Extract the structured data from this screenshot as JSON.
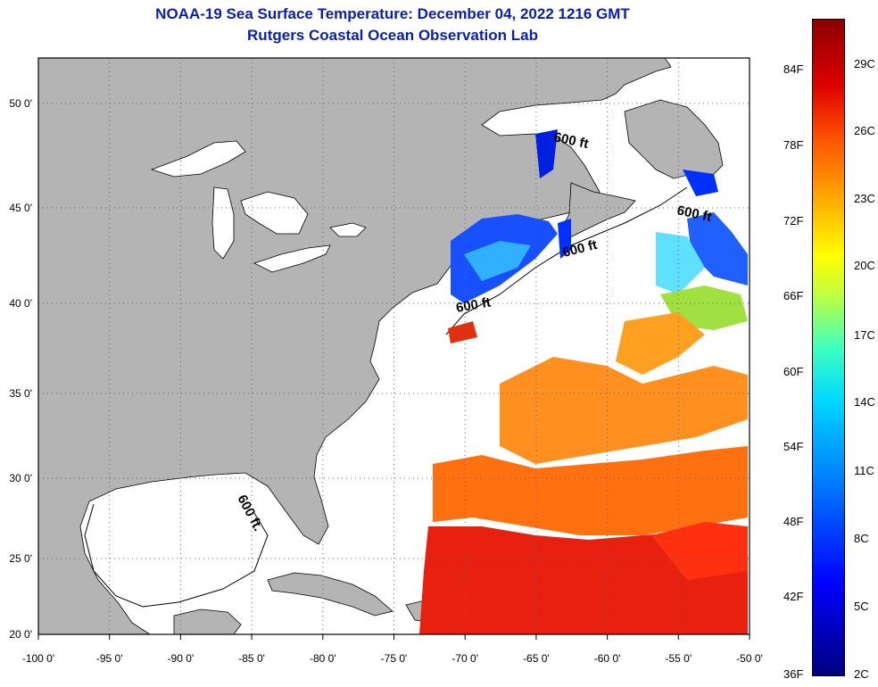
{
  "title": "NOAA-19 Sea Surface Temperature:  December 04, 2022 1216 GMT",
  "subtitle": "Rutgers Coastal Ocean Observation Lab",
  "map": {
    "lon_labels": [
      "-100 0'",
      "-95 0'",
      "-90 0'",
      "-85 0'",
      "-80 0'",
      "-75 0'",
      "-70 0'",
      "-65 0'",
      "-60 0'",
      "-55 0'",
      "-50 0'"
    ],
    "lat_labels": [
      "50 0'",
      "45 0'",
      "40 0'",
      "35 0'",
      "30 0'",
      "25 0'",
      "20 0'"
    ],
    "isobath_label": "600 ft",
    "gulf_isobath_label": "600 ft.",
    "land_color": "#b4b4b4",
    "no_data_color": "#ffffff"
  },
  "colorbar": {
    "fahrenheit": [
      "84F",
      "78F",
      "72F",
      "66F",
      "60F",
      "54F",
      "48F",
      "42F",
      "36F"
    ],
    "celsius": [
      "29C",
      "26C",
      "23C",
      "20C",
      "17C",
      "14C",
      "11C",
      "8C",
      "5C",
      "2C"
    ]
  }
}
